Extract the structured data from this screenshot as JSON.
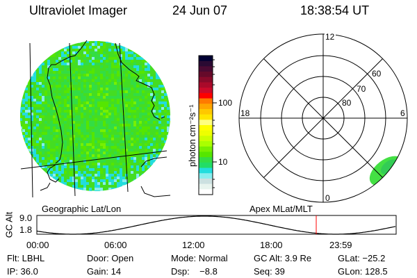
{
  "header": {
    "title": "Ultraviolet Imager",
    "date": "24 Jun 07",
    "time": "18:38:54 UT"
  },
  "colorbar": {
    "unit_label": "photon cm⁻²s⁻¹",
    "tick_labels": [
      "100",
      "10"
    ],
    "colors": [
      "#000033",
      "#2a0a33",
      "#4a0a33",
      "#660a2a",
      "#880a2a",
      "#aa0a2a",
      "#cc0a2a",
      "#ff0000",
      "#ff7a00",
      "#ffa500",
      "#ffc800",
      "#ffe600",
      "#ffff80",
      "#ffff00",
      "#eeff00",
      "#ccff00",
      "#aaff00",
      "#77f000",
      "#55e600",
      "#33dd44",
      "#22dd66",
      "#22dddd",
      "#88eeee",
      "#cce0e0",
      "#e8f4ee",
      "#ffffff"
    ]
  },
  "polar": {
    "mlt_labels": {
      "top": "12",
      "left": "18",
      "right": "6",
      "bottom": "0"
    },
    "lat_labels": [
      "60",
      "70",
      "80"
    ]
  },
  "strip": {
    "left_label": "Geographic Lat/Lon",
    "right_label": "Apex MLat/MLT",
    "y_axis_label": "GC Alt",
    "y_ticks": [
      "9.0",
      "1.8"
    ],
    "x_ticks": [
      "00:00",
      "06:00",
      "12:00",
      "18:00",
      "23:59"
    ],
    "current_time_marker_color": "#ff0000"
  },
  "status": {
    "row1": [
      "Flt: LBHL",
      "Door: Open",
      "Mode: Normal",
      "GC Alt: 3.9 Re",
      "GLat: −25.2"
    ],
    "row2": [
      "IP: 36.0",
      "Gain: 14",
      "Dsp:    −8.8",
      "Seq: 39",
      "GLon: 128.5"
    ]
  }
}
